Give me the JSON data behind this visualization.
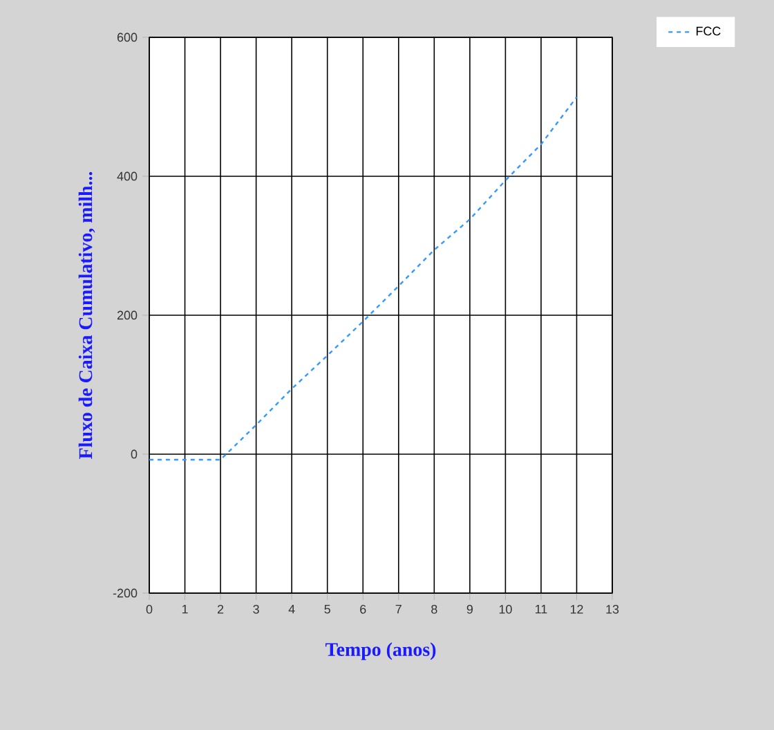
{
  "chart_data": {
    "type": "line",
    "xlabel": "Tempo (anos)",
    "ylabel": "Fluxo de Caixa Cumulativo, milh...",
    "x": [
      0,
      1,
      2,
      3,
      4,
      5,
      6,
      7,
      8,
      9,
      10,
      11,
      12
    ],
    "series": [
      {
        "name": "FCC",
        "color": "#3399ff",
        "values": [
          -8,
          -8,
          -8,
          42,
          94,
          142,
          191,
          242,
          294,
          338,
          394,
          446,
          514
        ]
      }
    ],
    "line_style": "dashed",
    "marker": "none",
    "legend": "top right",
    "grid": true,
    "xlim": [
      0,
      13
    ],
    "xticks": [
      0,
      1,
      2,
      3,
      4,
      5,
      6,
      7,
      8,
      9,
      10,
      11,
      12,
      13
    ],
    "ylim": [
      -200,
      600
    ],
    "yticks": [
      -200,
      0,
      200,
      400,
      600
    ]
  }
}
